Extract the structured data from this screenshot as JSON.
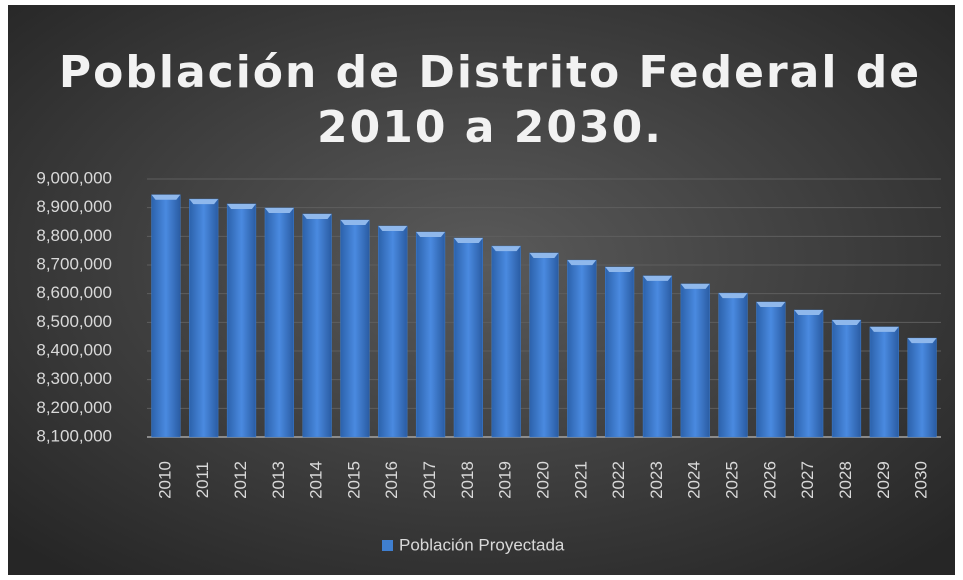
{
  "chart_data": {
    "type": "bar",
    "title": [
      "Población de Distrito Federal de",
      "2010 a 2030."
    ],
    "categories": [
      "2010",
      "2011",
      "2012",
      "2013",
      "2014",
      "2015",
      "2016",
      "2017",
      "2018",
      "2019",
      "2020",
      "2021",
      "2022",
      "2023",
      "2024",
      "2025",
      "2026",
      "2027",
      "2028",
      "2029",
      "2030"
    ],
    "series": [
      {
        "name": "Población Proyectada",
        "color": "#3f7fd0",
        "values": [
          8945000,
          8930000,
          8913000,
          8899000,
          8878000,
          8857000,
          8836000,
          8815000,
          8794000,
          8766000,
          8742000,
          8717000,
          8693000,
          8662000,
          8634000,
          8602000,
          8571000,
          8543000,
          8508000,
          8484000,
          8445000
        ]
      }
    ],
    "ylim": [
      8100000,
      9000000
    ],
    "yticks": [
      {
        "value": 8100000,
        "label": "8,100,000"
      },
      {
        "value": 8200000,
        "label": "8,200,000"
      },
      {
        "value": 8300000,
        "label": "8,300,000"
      },
      {
        "value": 8400000,
        "label": "8,400,000"
      },
      {
        "value": 8500000,
        "label": "8,500,000"
      },
      {
        "value": 8600000,
        "label": "8,600,000"
      },
      {
        "value": 8700000,
        "label": "8,700,000"
      },
      {
        "value": 8800000,
        "label": "8,800,000"
      },
      {
        "value": 8900000,
        "label": "8,900,000"
      },
      {
        "value": 9000000,
        "label": "9,000,000"
      }
    ],
    "grid": true,
    "legend": "bottom"
  }
}
